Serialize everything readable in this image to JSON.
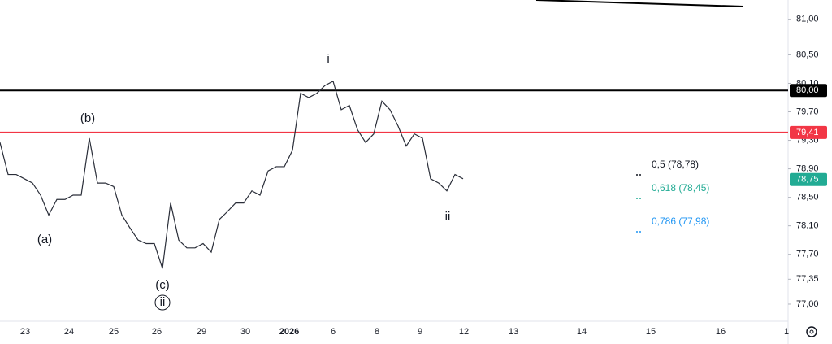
{
  "chart_data": {
    "type": "line",
    "ylim": [
      76.76,
      81.27
    ],
    "yticks": [
      {
        "value": 81,
        "label": "81,00"
      },
      {
        "value": 80.5,
        "label": "80,50"
      },
      {
        "value": 80.1,
        "label": "80,10"
      },
      {
        "value": 79.7,
        "label": "79,70"
      },
      {
        "value": 79.3,
        "label": "79,30"
      },
      {
        "value": 78.9,
        "label": "78,90"
      },
      {
        "value": 78.5,
        "label": "78,50"
      },
      {
        "value": 78.1,
        "label": "78,10"
      },
      {
        "value": 77.7,
        "label": "77,70"
      },
      {
        "value": 77.35,
        "label": "77,35"
      },
      {
        "value": 77,
        "label": "77,00"
      }
    ],
    "x_labels": [
      "23",
      "24",
      "25",
      "26",
      "29",
      "30",
      "2026",
      "6",
      "8",
      "9",
      "12",
      "13",
      "14",
      "15",
      "16",
      "1"
    ],
    "series": [
      {
        "color": "#2a2e39",
        "values": [
          79.27,
          78.82,
          78.82,
          78.76,
          78.7,
          78.53,
          78.25,
          78.47,
          78.47,
          78.53,
          78.53,
          79.33,
          78.7,
          78.7,
          78.65,
          78.25,
          78.07,
          77.9,
          77.85,
          77.85,
          77.5,
          78.42,
          77.9,
          77.79,
          77.79,
          77.85,
          77.73,
          78.19,
          78.3,
          78.42,
          78.42,
          78.59,
          78.53,
          78.87,
          78.93,
          78.93,
          79.16,
          79.96,
          79.9,
          79.96,
          80.07,
          80.13,
          79.73,
          79.79,
          79.45,
          79.27,
          79.39,
          79.85,
          79.73,
          79.5,
          79.22,
          79.39,
          79.33,
          78.76,
          78.7,
          78.59,
          78.82,
          78.76
        ]
      }
    ],
    "levels": [
      {
        "value": 80,
        "label": "80,00",
        "color": "#000000"
      },
      {
        "value": 79.41,
        "label": "79,41",
        "color": "#f23645"
      }
    ],
    "last_price": {
      "value": 78.75,
      "label": "78,75",
      "color": "#22ab94"
    },
    "fib_labels": [
      {
        "text": "0,5 (78,78)",
        "color": "#131722"
      },
      {
        "text": "0,618 (78,45)",
        "color": "#22ab94"
      },
      {
        "text": "0,786 (77,98)",
        "color": "#2196f3"
      }
    ],
    "wave_labels": [
      "(b)",
      "(a)",
      "(c)",
      "ii",
      "i",
      "ii"
    ]
  }
}
